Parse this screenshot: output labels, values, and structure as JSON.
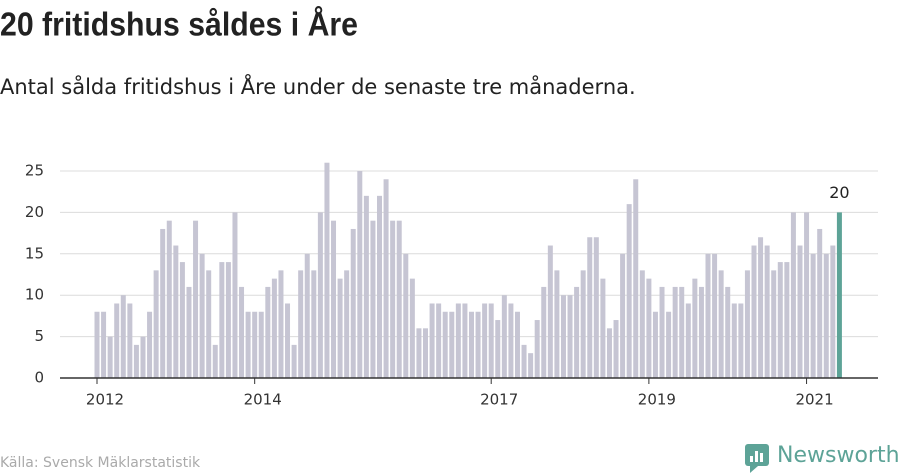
{
  "chart_data": {
    "type": "bar",
    "title": "20 fritidshus såldes i Åre",
    "subtitle": "Antal sålda fritidshus i Åre under de senaste tre månaderna.",
    "source": "Källa: Svensk Mäklarstatistik",
    "brand": "Newsworthy",
    "categories": [
      "2012",
      null,
      null,
      null,
      null,
      null,
      null,
      null,
      null,
      null,
      null,
      null,
      null,
      null,
      null,
      null,
      null,
      null,
      null,
      null,
      null,
      null,
      null,
      null,
      "2014",
      null,
      null,
      null,
      null,
      null,
      null,
      null,
      null,
      null,
      null,
      null,
      null,
      null,
      null,
      null,
      null,
      null,
      null,
      null,
      null,
      null,
      null,
      null,
      null,
      null,
      null,
      null,
      null,
      null,
      null,
      null,
      null,
      null,
      null,
      null,
      "2017",
      null,
      null,
      null,
      null,
      null,
      null,
      null,
      null,
      null,
      null,
      null,
      null,
      null,
      null,
      null,
      null,
      null,
      null,
      null,
      null,
      null,
      null,
      null,
      "2019",
      null,
      null,
      null,
      null,
      null,
      null,
      null,
      null,
      null,
      null,
      null,
      null,
      null,
      null,
      null,
      null,
      null,
      null,
      null,
      null,
      null,
      null,
      null,
      "2021",
      null,
      null,
      null,
      null,
      null
    ],
    "values": [
      8,
      8,
      5,
      9,
      10,
      9,
      4,
      5,
      8,
      13,
      18,
      19,
      16,
      14,
      11,
      19,
      15,
      13,
      4,
      14,
      14,
      20,
      11,
      8,
      8,
      8,
      11,
      12,
      13,
      9,
      4,
      13,
      15,
      13,
      20,
      26,
      19,
      12,
      13,
      18,
      25,
      22,
      19,
      22,
      24,
      19,
      19,
      15,
      12,
      6,
      6,
      9,
      9,
      8,
      8,
      9,
      9,
      8,
      8,
      9,
      9,
      7,
      10,
      9,
      8,
      4,
      3,
      7,
      11,
      16,
      13,
      10,
      10,
      11,
      13,
      17,
      17,
      12,
      6,
      7,
      15,
      21,
      24,
      13,
      12,
      8,
      11,
      8,
      11,
      11,
      9,
      12,
      11,
      15,
      15,
      13,
      11,
      9,
      9,
      13,
      16,
      17,
      16,
      13,
      14,
      14,
      20,
      16,
      20,
      15,
      18,
      15,
      16,
      20
    ],
    "color": "#c6c5d3",
    "highlight_color": "#5da397",
    "ylim": [
      0,
      25
    ],
    "yticks": [
      0,
      5,
      10,
      15,
      20,
      25
    ],
    "grid": true
  }
}
